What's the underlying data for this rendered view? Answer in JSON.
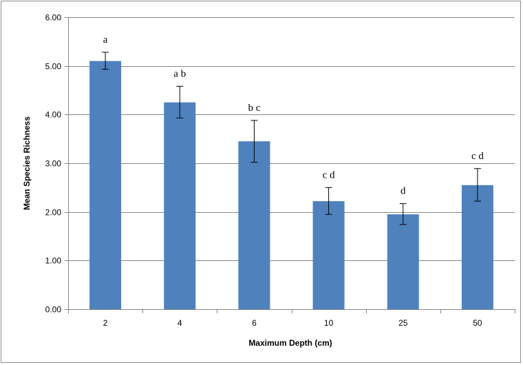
{
  "chart_data": {
    "type": "bar",
    "title": "",
    "xlabel": "Maximum Depth (cm)",
    "ylabel": "Mean Species Richness",
    "categories": [
      "2",
      "4",
      "6",
      "10",
      "25",
      "50"
    ],
    "values": [
      5.1,
      4.25,
      3.45,
      2.22,
      1.95,
      2.55
    ],
    "error_low": [
      4.93,
      3.93,
      3.02,
      1.95,
      1.74,
      2.22
    ],
    "error_high": [
      5.28,
      4.58,
      3.88,
      2.5,
      2.17,
      2.89
    ],
    "significance_letters": [
      "a",
      "a b",
      "b c",
      "c d",
      "d",
      "c d"
    ],
    "ylim": [
      0,
      6
    ],
    "yticks": [
      0,
      1,
      2,
      3,
      4,
      5,
      6
    ],
    "ytick_labels": [
      "0.00",
      "1.00",
      "2.00",
      "3.00",
      "4.00",
      "5.00",
      "6.00"
    ],
    "grid": "horizontal",
    "legend": "none",
    "bar_color": "#4f81bd",
    "grid_color": "#868686"
  }
}
